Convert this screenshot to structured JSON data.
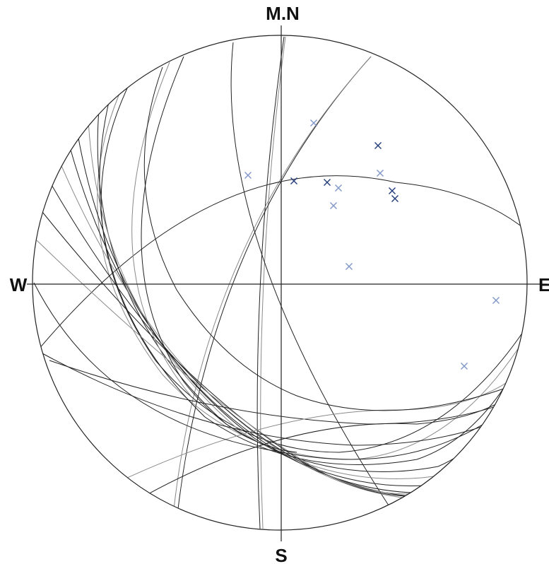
{
  "labels": {
    "north": "M.N",
    "south": "S",
    "east": "E",
    "west": "W"
  },
  "colors": {
    "ink": "#222222",
    "grey_line": "#8a8a8a",
    "pole_dark": "#1f3a7a",
    "pole_light": "#7f96c8"
  }
}
